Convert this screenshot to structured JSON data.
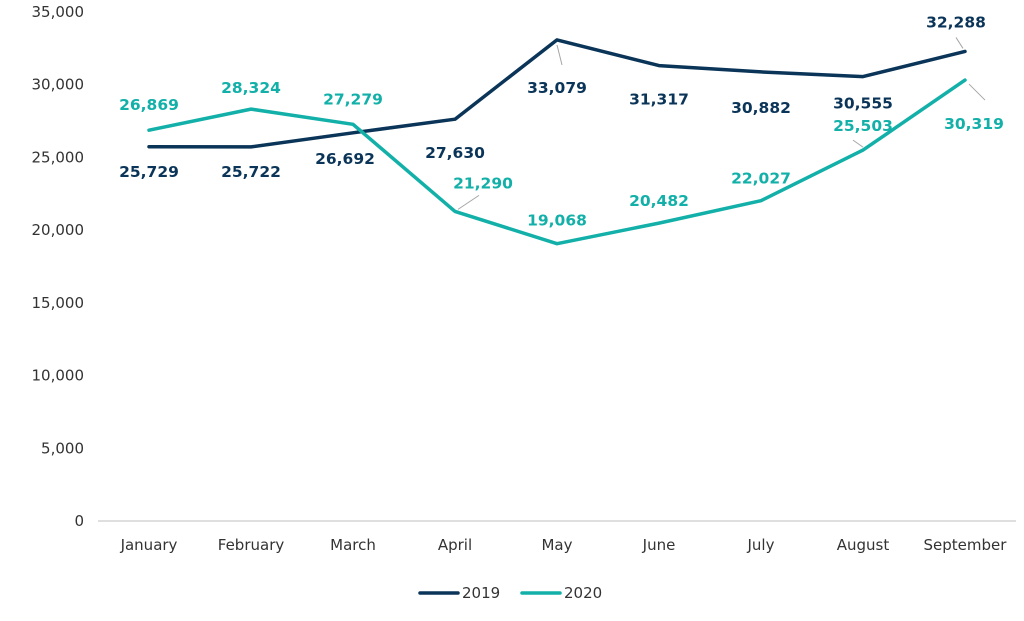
{
  "chart_data": {
    "type": "line",
    "title": "",
    "xlabel": "",
    "ylabel": "",
    "categories": [
      "January",
      "February",
      "March",
      "April",
      "May",
      "June",
      "July",
      "August",
      "September"
    ],
    "ylim": [
      0,
      35000
    ],
    "yticks": [
      "0",
      "5,000",
      "10,000",
      "15,000",
      "20,000",
      "25,000",
      "30,000",
      "35,000"
    ],
    "grid": false,
    "legend": "bottom",
    "series": [
      {
        "name": "2019",
        "color": "#0b3558",
        "values": [
          25729,
          25722,
          26692,
          27630,
          33079,
          31317,
          30882,
          30555,
          32288
        ],
        "labels": [
          "25,729",
          "25,722",
          "26,692",
          "27,630",
          "33,079",
          "31,317",
          "30,882",
          "30,555",
          "32,288"
        ]
      },
      {
        "name": "2020",
        "color": "#12b0a8",
        "values": [
          26869,
          28324,
          27279,
          21290,
          19068,
          20482,
          22027,
          25503,
          30319
        ],
        "labels": [
          "26,869",
          "28,324",
          "27,279",
          "21,290",
          "19,068",
          "20,482",
          "22,027",
          "25,503",
          "30,319"
        ]
      }
    ]
  }
}
